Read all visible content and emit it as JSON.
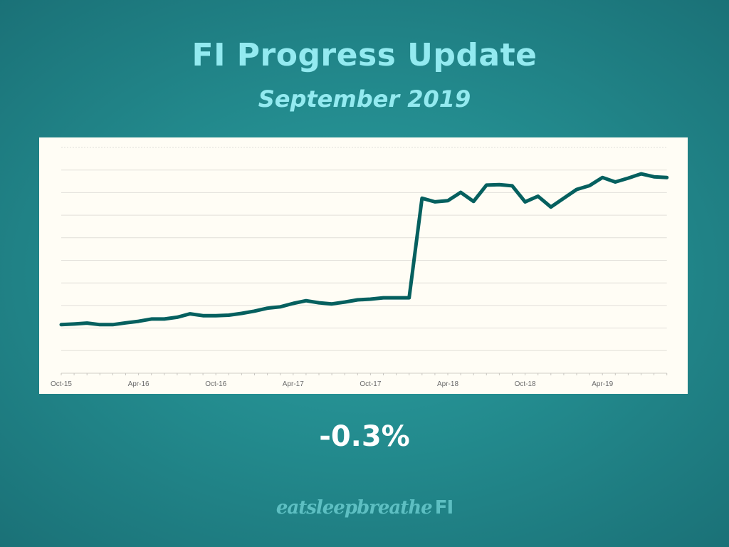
{
  "title": "FI Progress Update",
  "subtitle": "September 2019",
  "change": "-0.3%",
  "logo": {
    "script": "eatsleepbreathe",
    "bold": "FI"
  },
  "colors": {
    "line": "#05605f",
    "title": "#93eaf0",
    "chart_bg": "#fffdf5",
    "grid": "#e2e0da"
  },
  "chart_data": {
    "type": "line",
    "title": "",
    "xlabel": "",
    "ylabel": "",
    "ylim": [
      0,
      10
    ],
    "grid": true,
    "legend": "none",
    "x_tick_labels": [
      "Oct-15",
      "Apr-16",
      "Oct-16",
      "Apr-17",
      "Oct-17",
      "Apr-18",
      "Oct-18",
      "Apr-19"
    ],
    "x": [
      "Oct-15",
      "Nov-15",
      "Dec-15",
      "Jan-16",
      "Feb-16",
      "Mar-16",
      "Apr-16",
      "May-16",
      "Jun-16",
      "Jul-16",
      "Aug-16",
      "Sep-16",
      "Oct-16",
      "Nov-16",
      "Dec-16",
      "Jan-17",
      "Feb-17",
      "Mar-17",
      "Apr-17",
      "May-17",
      "Jun-17",
      "Jul-17",
      "Aug-17",
      "Sep-17",
      "Oct-17",
      "Nov-17",
      "Dec-17",
      "Jan-18",
      "Feb-18",
      "Mar-18",
      "Apr-18",
      "May-18",
      "Jun-18",
      "Jul-18",
      "Aug-18",
      "Sep-18",
      "Oct-18",
      "Nov-18",
      "Dec-18",
      "Jan-19",
      "Feb-19",
      "Mar-19",
      "Apr-19",
      "May-19",
      "Jun-19",
      "Jul-19",
      "Aug-19",
      "Sep-19"
    ],
    "series": [
      {
        "name": "FI progress",
        "values": [
          2.15,
          2.18,
          2.22,
          2.15,
          2.15,
          2.23,
          2.3,
          2.4,
          2.4,
          2.48,
          2.63,
          2.55,
          2.55,
          2.57,
          2.65,
          2.75,
          2.88,
          2.94,
          3.09,
          3.21,
          3.12,
          3.07,
          3.15,
          3.25,
          3.28,
          3.34,
          3.34,
          3.34,
          7.75,
          7.59,
          7.64,
          8.01,
          7.61,
          8.33,
          8.35,
          8.3,
          7.59,
          7.84,
          7.36,
          7.75,
          8.14,
          8.31,
          8.67,
          8.47,
          8.64,
          8.83,
          8.7,
          8.67
        ]
      }
    ]
  }
}
